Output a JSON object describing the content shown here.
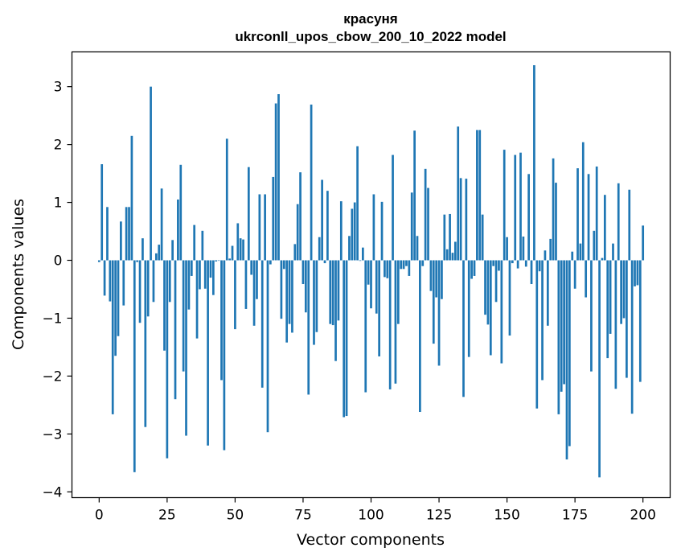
{
  "chart_data": {
    "type": "bar",
    "title": "красуня",
    "subtitle": "ukrconll_upos_cbow_200_10_2022 model",
    "xlabel": "Vector components",
    "ylabel": "Components values",
    "xlim": [
      -10,
      210
    ],
    "ylim": [
      -4.1,
      3.6
    ],
    "xticks": [
      0,
      25,
      50,
      75,
      100,
      125,
      150,
      175,
      200
    ],
    "xtick_labels": [
      "0",
      "25",
      "50",
      "75",
      "100",
      "125",
      "150",
      "175",
      "200"
    ],
    "yticks": [
      -4,
      -3,
      -2,
      -1,
      0,
      1,
      2,
      3
    ],
    "ytick_labels": [
      "−4",
      "−3",
      "−2",
      "−1",
      "0",
      "1",
      "2",
      "3"
    ],
    "grid": false,
    "bar_color": "#1f77b4",
    "values": [
      -0.03,
      1.66,
      -0.61,
      0.92,
      -0.71,
      -2.66,
      -1.65,
      -1.31,
      0.67,
      -0.78,
      0.92,
      0.92,
      2.15,
      -3.66,
      -0.03,
      -1.08,
      0.38,
      -2.88,
      -0.97,
      3.0,
      -0.72,
      0.12,
      0.27,
      1.24,
      -1.56,
      -3.42,
      -0.72,
      0.35,
      -2.4,
      1.05,
      1.65,
      -1.92,
      -3.03,
      -0.85,
      -0.27,
      0.61,
      -1.35,
      -0.5,
      0.51,
      -0.49,
      -3.2,
      -0.3,
      -0.6,
      -0.02,
      0.0,
      -2.07,
      -3.28,
      2.1,
      0.03,
      0.25,
      -1.19,
      0.64,
      0.38,
      0.36,
      -0.84,
      1.61,
      -0.25,
      -1.13,
      -0.67,
      1.14,
      -2.2,
      1.14,
      -2.97,
      -0.07,
      1.44,
      2.71,
      2.87,
      -1.01,
      -0.15,
      -1.42,
      -1.1,
      -1.25,
      0.28,
      0.97,
      1.52,
      -0.41,
      -0.9,
      -2.32,
      2.69,
      -1.46,
      -1.24,
      0.4,
      1.39,
      -0.05,
      1.2,
      -1.1,
      -1.12,
      -1.74,
      -1.04,
      1.02,
      -2.71,
      -2.69,
      0.42,
      0.89,
      1.0,
      1.97,
      -0.01,
      0.22,
      -2.28,
      -0.42,
      -0.83,
      1.14,
      -0.92,
      -1.66,
      1.01,
      -0.29,
      -0.31,
      -2.23,
      1.82,
      -2.13,
      -1.1,
      -0.15,
      -0.15,
      -0.1,
      -0.27,
      1.17,
      2.24,
      0.42,
      -2.62,
      -0.1,
      1.58,
      1.25,
      -0.53,
      -1.44,
      -0.64,
      -1.82,
      -0.67,
      0.79,
      0.19,
      0.8,
      0.13,
      0.32,
      2.31,
      1.42,
      -2.36,
      1.41,
      -1.67,
      -0.32,
      -0.27,
      2.25,
      2.25,
      0.79,
      -0.94,
      -1.11,
      -1.64,
      -0.1,
      -0.72,
      -0.18,
      -1.78,
      1.91,
      0.4,
      -1.3,
      -0.05,
      1.82,
      -0.14,
      1.86,
      0.41,
      -0.11,
      1.49,
      -0.41,
      3.37,
      -2.56,
      -0.19,
      -2.07,
      0.17,
      -1.13,
      0.37,
      1.76,
      1.34,
      -2.66,
      -2.27,
      -2.14,
      -3.44,
      -3.21,
      0.15,
      -0.49,
      1.59,
      0.29,
      2.04,
      -0.64,
      1.49,
      -1.92,
      0.51,
      1.62,
      -3.75,
      0.04,
      1.13,
      -1.69,
      -1.27,
      0.29,
      -2.22,
      1.33,
      -1.1,
      -1.0,
      -2.03,
      1.22,
      -2.65,
      -0.45,
      -0.43,
      -2.1,
      0.6
    ]
  }
}
